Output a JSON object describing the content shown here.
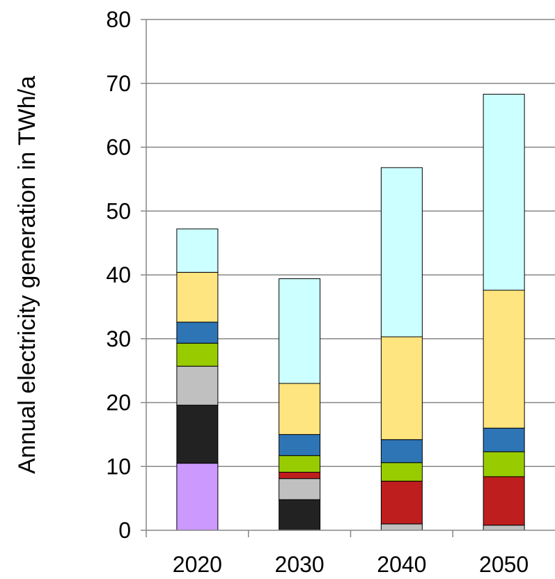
{
  "chart_data": {
    "type": "bar",
    "stacked": true,
    "title": "",
    "xlabel": "",
    "ylabel": "Annual electricity generation in TWh/a",
    "ylim": [
      0,
      80
    ],
    "yticks": [
      "0",
      "10",
      "20",
      "30",
      "40",
      "50",
      "60",
      "70",
      "80"
    ],
    "grid": true,
    "legend": "none",
    "categories": [
      "2020",
      "2030",
      "2040",
      "2050"
    ],
    "series": [
      {
        "color": "#cc99ff",
        "values": [
          10.5,
          0,
          0,
          0
        ]
      },
      {
        "color": "#222222",
        "values": [
          9.1,
          4.8,
          0,
          0
        ]
      },
      {
        "color": "#c0c0c0",
        "values": [
          6.1,
          3.3,
          1.0,
          0.8
        ]
      },
      {
        "color": "#be1e1e",
        "values": [
          0,
          1.0,
          6.7,
          7.6
        ]
      },
      {
        "color": "#99cc00",
        "values": [
          3.6,
          2.6,
          2.9,
          3.9
        ]
      },
      {
        "color": "#2e75b6",
        "values": [
          3.3,
          3.3,
          3.6,
          3.7
        ]
      },
      {
        "color": "#ffe57f",
        "values": [
          7.8,
          8.0,
          16.1,
          21.6
        ]
      },
      {
        "color": "#ccffff",
        "values": [
          6.8,
          16.4,
          26.5,
          30.7
        ]
      }
    ]
  }
}
